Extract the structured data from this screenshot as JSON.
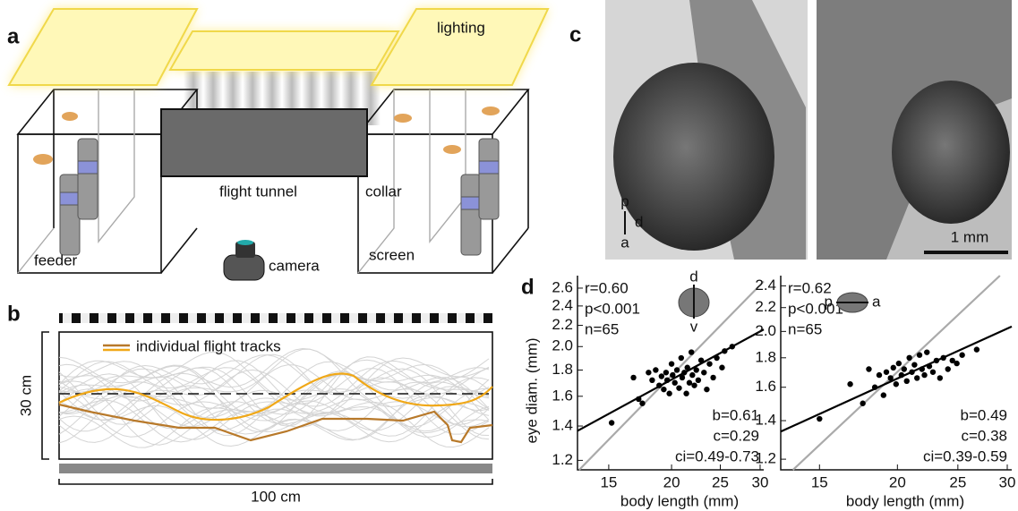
{
  "panel_labels": [
    "a",
    "b",
    "c",
    "d"
  ],
  "panel_a": {
    "lighting": "lighting",
    "flight_tunnel": "flight tunnel",
    "collar": "collar",
    "feeder": "feeder",
    "screen": "screen",
    "camera": "camera"
  },
  "panel_b": {
    "legend": "individual flight tracks",
    "height": "30 cm",
    "length": "100 cm"
  },
  "panel_c": {
    "orientation": [
      "p",
      "d",
      "a"
    ],
    "scale_bar": "1 mm"
  },
  "chart_data": [
    {
      "type": "scatter",
      "log_scale": true,
      "x_label": "body length (mm)",
      "y_label": "eye diam. (mm)",
      "color": "#000000",
      "xlim": [
        13,
        30.5
      ],
      "ylim": [
        1.15,
        2.75
      ],
      "xticks": [
        15,
        20,
        25,
        30
      ],
      "yticks": [
        {
          "value": 1.2,
          "label": "1.2"
        },
        {
          "value": 1.4,
          "label": "1.4"
        },
        {
          "value": 1.6,
          "label": "1.6"
        },
        {
          "value": 1.8,
          "label": "1.8"
        },
        {
          "value": 2,
          "label": "2.0"
        },
        {
          "value": 2.2,
          "label": "2.2"
        },
        {
          "value": 2.4,
          "label": "2.4"
        },
        {
          "value": 2.6,
          "label": "2.6"
        }
      ],
      "x": [
        15.2,
        16.8,
        17.2,
        17.5,
        18,
        18.3,
        18.6,
        18.9,
        19.1,
        19.3,
        19.5,
        19.6,
        19.8,
        20,
        20.1,
        20.3,
        20.5,
        20.7,
        20.9,
        21,
        21.2,
        21.4,
        21.5,
        21.7,
        21.9,
        22,
        22.2,
        22.4,
        22.6,
        22.9,
        23.2,
        23.5,
        23.8,
        24.2,
        24.6,
        25.2,
        25.5,
        26.4
      ],
      "y": [
        1.42,
        1.74,
        1.58,
        1.55,
        1.78,
        1.72,
        1.8,
        1.68,
        1.75,
        1.65,
        1.78,
        1.72,
        1.62,
        1.85,
        1.76,
        1.7,
        1.8,
        1.66,
        1.9,
        1.74,
        1.78,
        1.62,
        1.82,
        1.7,
        1.95,
        1.76,
        1.68,
        1.8,
        1.72,
        1.88,
        1.78,
        1.65,
        1.85,
        1.74,
        1.9,
        1.82,
        1.96,
        2.0
      ],
      "lines": [
        {
          "color": "#aaaaaa",
          "x": [
            13.1,
            30.5
          ],
          "y": [
            1.15,
            2.68
          ]
        },
        {
          "color": "#000000",
          "x": [
            13,
            30.5
          ],
          "y": [
            1.37,
            2.16
          ]
        }
      ],
      "stats_top": [
        "r=0.60",
        "p<0.001",
        "n=65"
      ],
      "stats_bottom": [
        "b=0.61",
        "c=0.29",
        "ci=0.49-0.73"
      ],
      "inset_labels": [
        "d",
        "v"
      ]
    },
    {
      "type": "scatter",
      "log_scale": true,
      "x_label": "body length (mm)",
      "color": "#000000",
      "xlim": [
        13,
        30.5
      ],
      "ylim": [
        1.15,
        2.5
      ],
      "xticks": [
        15,
        20,
        25,
        30
      ],
      "yticks": [
        {
          "value": 1.2,
          "label": "1.2"
        },
        {
          "value": 1.4,
          "label": "1.4"
        },
        {
          "value": 1.6,
          "label": "1.6"
        },
        {
          "value": 1.8,
          "label": "1.8"
        },
        {
          "value": 2,
          "label": "2.0"
        },
        {
          "value": 2.2,
          "label": "2.2"
        },
        {
          "value": 2.4,
          "label": "2.4"
        }
      ],
      "x": [
        15,
        16.8,
        17.6,
        18,
        18.4,
        18.7,
        19,
        19.2,
        19.5,
        19.7,
        19.9,
        20.1,
        20.3,
        20.5,
        20.7,
        20.9,
        21.1,
        21.3,
        21.5,
        21.7,
        21.9,
        22.1,
        22.3,
        22.5,
        22.8,
        23.1,
        23.4,
        23.7,
        24.1,
        24.5,
        24.9,
        25.4,
        26.8
      ],
      "y": [
        1.41,
        1.62,
        1.5,
        1.72,
        1.6,
        1.68,
        1.55,
        1.7,
        1.66,
        1.73,
        1.62,
        1.76,
        1.68,
        1.72,
        1.64,
        1.8,
        1.7,
        1.75,
        1.66,
        1.82,
        1.72,
        1.68,
        1.84,
        1.74,
        1.7,
        1.78,
        1.66,
        1.8,
        1.72,
        1.78,
        1.76,
        1.82,
        1.86
      ],
      "lines": [
        {
          "color": "#aaaaaa",
          "x": [
            13.6,
            29.2
          ],
          "y": [
            1.15,
            2.5
          ]
        },
        {
          "color": "#000000",
          "x": [
            13,
            30.5
          ],
          "y": [
            1.34,
            2.04
          ]
        }
      ],
      "stats_top": [
        "r=0.62",
        "p<0.001",
        "n=65"
      ],
      "stats_bottom": [
        "b=0.49",
        "c=0.38",
        "ci=0.39-0.59"
      ],
      "inset_labels": [
        "p",
        "a"
      ]
    }
  ]
}
